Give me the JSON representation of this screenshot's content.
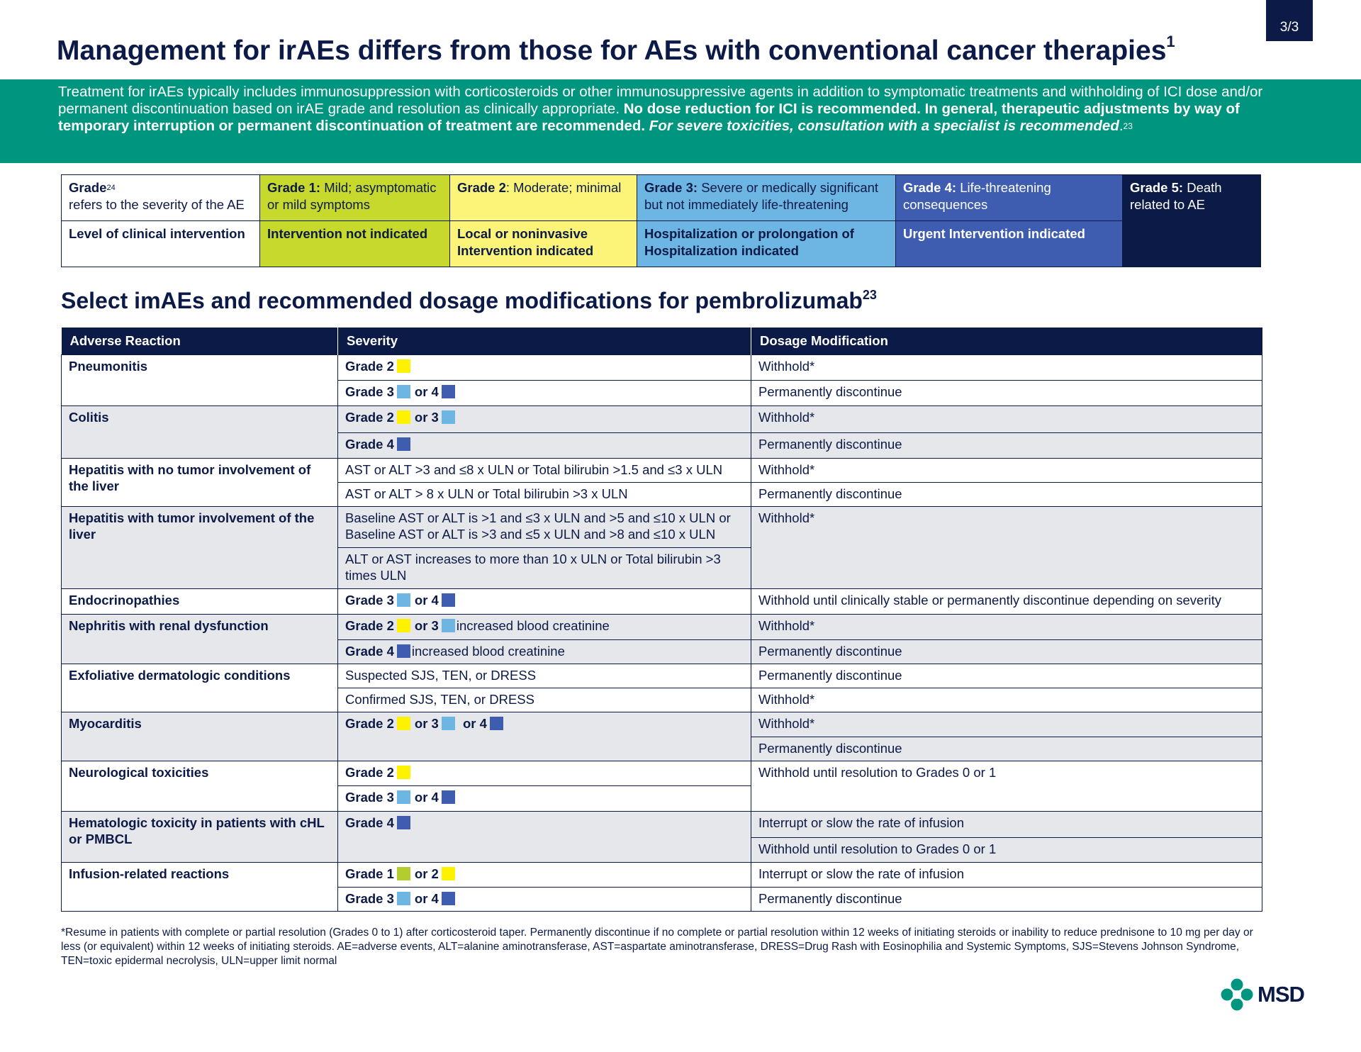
{
  "page_number": "3/3",
  "title": "Management for irAEs differs from those for AEs with conventional cancer therapies",
  "title_ref": "1",
  "intro": {
    "text1": "Treatment for irAEs typically includes immunosuppression with corticosteroids or other immunosuppressive agents in addition to symptomatic treatments and withholding of ICI dose and/or permanent discontinuation based on irAE grade and resolution as clinically appropriate. ",
    "bold": "No dose reduction for ICI is recommended. In general, therapeutic adjustments by way of temporary interruption or permanent discontinuation of treatment are recommended. ",
    "bold_italic": "For severe toxicities, consultation with a specialist is recommended",
    "end": ".",
    "ref": "23"
  },
  "grade_table": {
    "row1": {
      "label_bold": "Grade",
      "label_ref": "24",
      "label_text": "refers to the severity of the AE",
      "g1_bold": "Grade 1:",
      "g1_text": " Mild; asymptomatic or mild symptoms",
      "g2_bold": "Grade 2",
      "g2_text": ": Moderate; minimal",
      "g3_bold": "Grade 3:",
      "g3_text": " Severe or medically significant but not immediately life-threatening",
      "g4_bold": "Grade 4:",
      "g4_text": " Life-threatening consequences",
      "g5_bold": "Grade 5:",
      "g5_text": " Death related to AE"
    },
    "row2": {
      "label": "Level of clinical intervention",
      "g1": "Intervention not indicated",
      "g2": "Local or noninvasive Intervention indicated",
      "g3": "Hospitalization or prolongation of Hospitalization indicated",
      "g4": "Urgent Intervention indicated"
    }
  },
  "subtitle": "Select imAEs and recommended dosage modifications for pembrolizumab",
  "subtitle_ref": "23",
  "table": {
    "headers": [
      "Adverse Reaction",
      "Severity",
      "Dosage Modification"
    ],
    "grade2": "Grade 2",
    "grade3": "Grade 3",
    "grade4": "Grade 4",
    "grade1": "Grade 1",
    "or2": "or 2",
    "or3": "or 3",
    "or4": "or 4",
    "increased_creatinine": "increased blood creatinine",
    "pneumonitis": "Pneumonitis",
    "colitis": "Colitis",
    "hep_no": "Hepatitis with no tumor involvement of the liver",
    "hep_no_sev1": "AST or  ALT >3 and ≤8 x ULN or Total bilirubin >1.5 and ≤3 x ULN",
    "hep_no_sev2": "AST or ALT > 8 x ULN or Total bilirubin >3 x ULN",
    "hep_tumor": "Hepatitis with tumor involvement of the liver",
    "hep_tumor_sev1": "Baseline AST or ALT is >1 and ≤3 x ULN and >5 and ≤10 x ULN or Baseline AST or ALT is >3 and ≤5 x ULN and >8 and ≤10 x ULN",
    "hep_tumor_sev2": "ALT or AST increases to more than 10 x ULN or Total bilirubin >3 times ULN",
    "endo": "Endocrinopathies",
    "endo_mod": "Withhold until clinically stable or permanently discontinue depending on severity",
    "nephritis": "Nephritis with renal dysfunction",
    "exfol": "Exfoliative dermatologic conditions",
    "exfol_sev1": "Suspected SJS, TEN, or DRESS",
    "exfol_sev2": "Confirmed SJS, TEN, or DRESS",
    "myo": "Myocarditis",
    "neuro": "Neurological toxicities",
    "neuro_mod": "Withhold until resolution to Grades 0 or 1",
    "hema": "Hematologic toxicity in patients with cHL or PMBCL",
    "infusion": "Infusion-related reactions",
    "withhold": "Withhold*",
    "perm": "Permanently discontinue",
    "interrupt": "Interrupt or slow the rate of infusion",
    "withhold_res": "Withhold until resolution to Grades 0 or 1"
  },
  "footnote": "*Resume in patients with complete or partial resolution (Grades 0 to 1) after corticosteroid taper. Permanently discontinue if no complete or partial resolution within 12 weeks of initiating steroids or inability to reduce prednisone to 10 mg per day or less (or equivalent) within 12 weeks of initiating steroids. AE=adverse events, ALT=alanine aminotransferase, AST=aspartate aminotransferase, DRESS=Drug Rash with Eosinophilia and Systemic Symptoms, SJS=Stevens Johnson Syndrome, TEN=toxic epidermal necrolysis, ULN=upper limit normal",
  "logo_text": "MSD",
  "colors": {
    "navy": "#0c1a47",
    "teal": "#00957e",
    "grade1": "#c7d92c",
    "grade2": "#fbf478",
    "grade3": "#6db5e3",
    "grade4": "#3e5db0",
    "grade5": "#0c1a47"
  }
}
